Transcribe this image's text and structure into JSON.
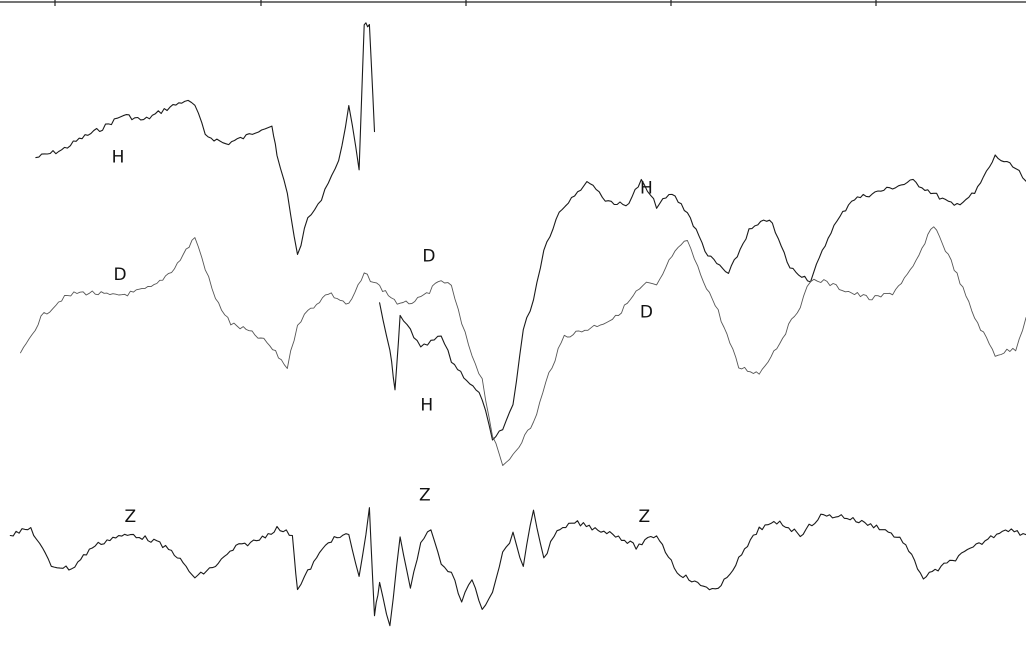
{
  "chart_data": {
    "type": "line",
    "title": "",
    "xlabel": "",
    "ylabel": "",
    "grid": false,
    "series": [
      {
        "name": "H",
        "segments": [
          [
            [
              0.035,
              0.778
            ],
            [
              0.06,
              0.79
            ],
            [
              0.08,
              0.81
            ],
            [
              0.1,
              0.826
            ],
            [
              0.12,
              0.847
            ],
            [
              0.14,
              0.838
            ],
            [
              0.16,
              0.855
            ],
            [
              0.18,
              0.87
            ],
            [
              0.19,
              0.862
            ],
            [
              0.2,
              0.815
            ],
            [
              0.22,
              0.8
            ],
            [
              0.24,
              0.812
            ],
            [
              0.255,
              0.826
            ],
            [
              0.265,
              0.83
            ],
            [
              0.27,
              0.78
            ],
            [
              0.28,
              0.72
            ],
            [
              0.29,
              0.62
            ],
            [
              0.3,
              0.68
            ],
            [
              0.31,
              0.7
            ],
            [
              0.32,
              0.74
            ],
            [
              0.33,
              0.77
            ],
            [
              0.34,
              0.86
            ],
            [
              0.35,
              0.76
            ],
            [
              0.355,
              0.995
            ],
            [
              0.36,
              0.99
            ],
            [
              0.365,
              0.82
            ]
          ],
          [
            [
              0.37,
              0.54
            ],
            [
              0.38,
              0.47
            ],
            [
              0.385,
              0.4
            ],
            [
              0.39,
              0.52
            ],
            [
              0.4,
              0.5
            ],
            [
              0.41,
              0.47
            ],
            [
              0.42,
              0.48
            ],
            [
              0.43,
              0.49
            ],
            [
              0.44,
              0.45
            ],
            [
              0.455,
              0.42
            ],
            [
              0.47,
              0.39
            ],
            [
              0.48,
              0.32
            ],
            [
              0.49,
              0.34
            ],
            [
              0.5,
              0.38
            ],
            [
              0.51,
              0.5
            ],
            [
              0.52,
              0.55
            ],
            [
              0.53,
              0.63
            ],
            [
              0.545,
              0.69
            ],
            [
              0.56,
              0.72
            ],
            [
              0.575,
              0.74
            ],
            [
              0.59,
              0.71
            ],
            [
              0.61,
              0.7
            ],
            [
              0.625,
              0.74
            ],
            [
              0.64,
              0.7
            ],
            [
              0.655,
              0.72
            ],
            [
              0.67,
              0.69
            ],
            [
              0.69,
              0.62
            ],
            [
              0.71,
              0.59
            ],
            [
              0.73,
              0.66
            ],
            [
              0.75,
              0.68
            ],
            [
              0.77,
              0.6
            ],
            [
              0.79,
              0.58
            ],
            [
              0.81,
              0.66
            ],
            [
              0.83,
              0.71
            ],
            [
              0.85,
              0.72
            ],
            [
              0.87,
              0.73
            ],
            [
              0.89,
              0.74
            ],
            [
              0.91,
              0.72
            ],
            [
              0.93,
              0.7
            ],
            [
              0.95,
              0.72
            ],
            [
              0.97,
              0.78
            ],
            [
              0.99,
              0.76
            ],
            [
              1.0,
              0.74
            ]
          ]
        ]
      },
      {
        "name": "D",
        "segments": [
          [
            [
              0.02,
              0.46
            ],
            [
              0.04,
              0.52
            ],
            [
              0.06,
              0.55
            ],
            [
              0.075,
              0.56
            ],
            [
              0.09,
              0.56
            ],
            [
              0.11,
              0.555
            ],
            [
              0.13,
              0.56
            ],
            [
              0.15,
              0.57
            ],
            [
              0.17,
              0.6
            ],
            [
              0.19,
              0.65
            ],
            [
              0.2,
              0.6
            ],
            [
              0.21,
              0.55
            ],
            [
              0.225,
              0.51
            ],
            [
              0.24,
              0.5
            ],
            [
              0.26,
              0.48
            ],
            [
              0.28,
              0.44
            ],
            [
              0.29,
              0.51
            ],
            [
              0.3,
              0.53
            ],
            [
              0.32,
              0.56
            ],
            [
              0.34,
              0.54
            ],
            [
              0.355,
              0.59
            ],
            [
              0.37,
              0.57
            ],
            [
              0.39,
              0.54
            ],
            [
              0.41,
              0.55
            ],
            [
              0.43,
              0.58
            ],
            [
              0.44,
              0.57
            ],
            [
              0.45,
              0.51
            ],
            [
              0.46,
              0.46
            ],
            [
              0.47,
              0.42
            ],
            [
              0.48,
              0.33
            ],
            [
              0.49,
              0.28
            ],
            [
              0.5,
              0.3
            ],
            [
              0.52,
              0.35
            ],
            [
              0.535,
              0.43
            ],
            [
              0.55,
              0.49
            ],
            [
              0.57,
              0.5
            ],
            [
              0.6,
              0.52
            ],
            [
              0.62,
              0.56
            ],
            [
              0.63,
              0.575
            ],
            [
              0.64,
              0.57
            ],
            [
              0.655,
              0.62
            ],
            [
              0.67,
              0.645
            ],
            [
              0.68,
              0.6
            ],
            [
              0.7,
              0.53
            ],
            [
              0.72,
              0.44
            ],
            [
              0.74,
              0.43
            ],
            [
              0.76,
              0.48
            ],
            [
              0.78,
              0.54
            ],
            [
              0.79,
              0.58
            ],
            [
              0.8,
              0.58
            ],
            [
              0.83,
              0.56
            ],
            [
              0.85,
              0.55
            ],
            [
              0.87,
              0.56
            ],
            [
              0.89,
              0.6
            ],
            [
              0.91,
              0.67
            ],
            [
              0.93,
              0.6
            ],
            [
              0.95,
              0.52
            ],
            [
              0.97,
              0.46
            ],
            [
              0.99,
              0.47
            ],
            [
              1.0,
              0.52
            ]
          ]
        ]
      },
      {
        "name": "Z",
        "segments": [
          [
            [
              0.01,
              0.17
            ],
            [
              0.03,
              0.18
            ],
            [
              0.05,
              0.12
            ],
            [
              0.07,
              0.115
            ],
            [
              0.09,
              0.15
            ],
            [
              0.11,
              0.165
            ],
            [
              0.13,
              0.17
            ],
            [
              0.15,
              0.16
            ],
            [
              0.17,
              0.14
            ],
            [
              0.19,
              0.1
            ],
            [
              0.21,
              0.12
            ],
            [
              0.23,
              0.15
            ],
            [
              0.25,
              0.16
            ],
            [
              0.27,
              0.18
            ],
            [
              0.285,
              0.17
            ],
            [
              0.29,
              0.08
            ],
            [
              0.3,
              0.11
            ],
            [
              0.32,
              0.16
            ],
            [
              0.34,
              0.17
            ],
            [
              0.35,
              0.1
            ],
            [
              0.36,
              0.21
            ],
            [
              0.365,
              0.04
            ],
            [
              0.37,
              0.09
            ],
            [
              0.38,
              0.02
            ],
            [
              0.39,
              0.17
            ],
            [
              0.4,
              0.08
            ],
            [
              0.41,
              0.16
            ],
            [
              0.42,
              0.18
            ],
            [
              0.43,
              0.12
            ],
            [
              0.44,
              0.11
            ],
            [
              0.45,
              0.06
            ],
            [
              0.46,
              0.1
            ],
            [
              0.47,
              0.05
            ],
            [
              0.48,
              0.08
            ],
            [
              0.49,
              0.14
            ],
            [
              0.5,
              0.17
            ],
            [
              0.51,
              0.12
            ],
            [
              0.52,
              0.21
            ],
            [
              0.53,
              0.13
            ],
            [
              0.54,
              0.17
            ],
            [
              0.56,
              0.19
            ],
            [
              0.58,
              0.18
            ],
            [
              0.6,
              0.17
            ],
            [
              0.62,
              0.15
            ],
            [
              0.64,
              0.17
            ],
            [
              0.66,
              0.11
            ],
            [
              0.68,
              0.09
            ],
            [
              0.7,
              0.08
            ],
            [
              0.72,
              0.13
            ],
            [
              0.74,
              0.18
            ],
            [
              0.76,
              0.19
            ],
            [
              0.78,
              0.17
            ],
            [
              0.8,
              0.2
            ],
            [
              0.82,
              0.2
            ],
            [
              0.84,
              0.19
            ],
            [
              0.86,
              0.18
            ],
            [
              0.88,
              0.16
            ],
            [
              0.9,
              0.1
            ],
            [
              0.92,
              0.12
            ],
            [
              0.94,
              0.14
            ],
            [
              0.96,
              0.16
            ],
            [
              0.98,
              0.18
            ],
            [
              1.0,
              0.17
            ]
          ]
        ]
      }
    ],
    "annotations": [
      {
        "text": "H",
        "x": 0.115,
        "y": 0.78
      },
      {
        "text": "D",
        "x": 0.117,
        "y": 0.59
      },
      {
        "text": "Z",
        "x": 0.127,
        "y": 0.2
      },
      {
        "text": "D",
        "x": 0.418,
        "y": 0.62
      },
      {
        "text": "H",
        "x": 0.416,
        "y": 0.38
      },
      {
        "text": "Z",
        "x": 0.414,
        "y": 0.235
      },
      {
        "text": "H",
        "x": 0.63,
        "y": 0.73
      },
      {
        "text": "D",
        "x": 0.63,
        "y": 0.53
      },
      {
        "text": "Z",
        "x": 0.628,
        "y": 0.2
      }
    ],
    "top_axis_ticks": 5
  }
}
